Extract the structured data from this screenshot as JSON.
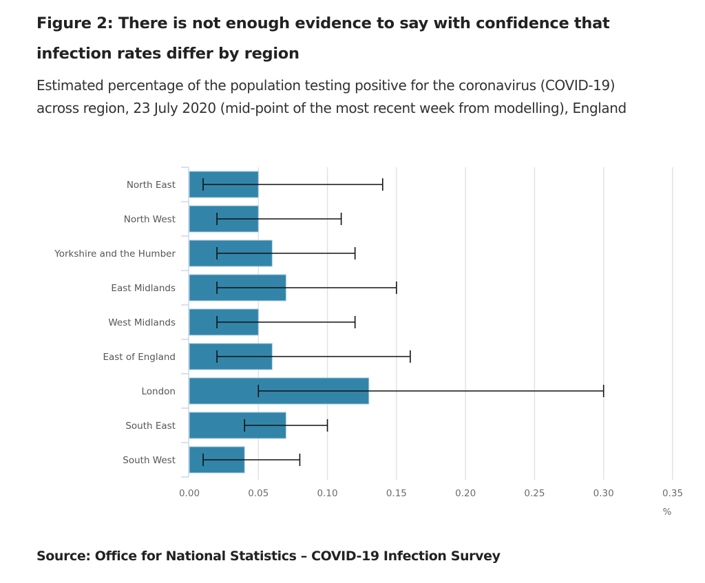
{
  "header": {
    "title": "Figure 2: There is not enough evidence to say with confidence that infection rates differ by region",
    "subtitle": "Estimated percentage of the population testing positive for the coronavirus (COVID-19) across region, 23 July 2020 (mid-point of the most recent week from modelling), England"
  },
  "footer": {
    "source": "Source: Office for National Statistics – COVID-19 Infection Survey"
  },
  "colors": {
    "bar": "#3384a9",
    "bar_border": "#a9cbe0",
    "error_bar": "#111111",
    "grid": "#e2e2e2",
    "axis": "#c8d8ea"
  },
  "chart_data": {
    "type": "bar",
    "orientation": "horizontal",
    "title": "Figure 2: There is not enough evidence to say with confidence that infection rates differ by region",
    "subtitle": "Estimated percentage of the population testing positive for the coronavirus (COVID-19) across region, 23 July 2020 (mid-point of the most recent week from modelling), England",
    "categories": [
      "North East",
      "North West",
      "Yorkshire and the Humber",
      "East Midlands",
      "West Midlands",
      "East of England",
      "London",
      "South East",
      "South West"
    ],
    "values": [
      0.05,
      0.05,
      0.06,
      0.07,
      0.05,
      0.06,
      0.13,
      0.07,
      0.04
    ],
    "lower_ci": [
      0.01,
      0.02,
      0.02,
      0.02,
      0.02,
      0.02,
      0.05,
      0.04,
      0.01
    ],
    "upper_ci": [
      0.14,
      0.11,
      0.12,
      0.15,
      0.12,
      0.16,
      0.3,
      0.1,
      0.08
    ],
    "xlabel": "%",
    "ylabel": "",
    "xlim": [
      0,
      0.35
    ],
    "xticks": [
      0,
      0.05,
      0.1,
      0.15,
      0.2,
      0.25,
      0.3,
      0.35
    ],
    "xtick_labels": [
      "0.00",
      "0.05",
      "0.10",
      "0.15",
      "0.20",
      "0.25",
      "0.30",
      "0.35"
    ],
    "grid": true,
    "legend": "none"
  }
}
